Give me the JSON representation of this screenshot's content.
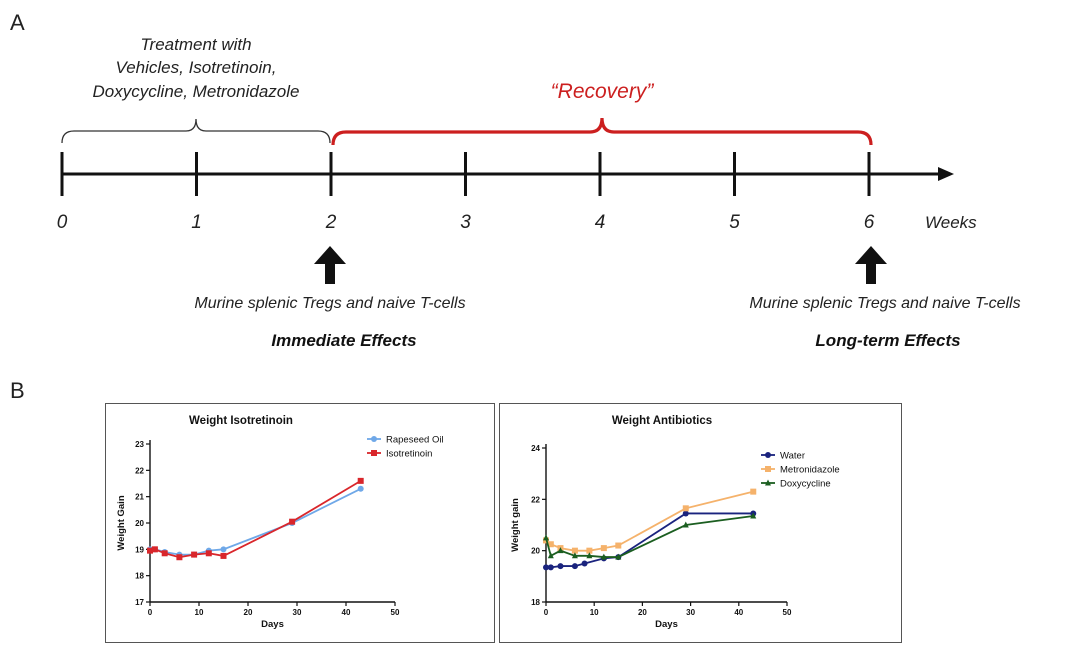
{
  "panel_a": {
    "letter": "A",
    "treatment_lines": [
      "Treatment with",
      "Vehicles, Isotretinoin,",
      "Doxycycline, Metronidazole"
    ],
    "recovery_label": "“Recovery”",
    "weeks": [
      "0",
      "1",
      "2",
      "3",
      "4",
      "5",
      "6"
    ],
    "weeks_unit": "Weeks",
    "left_caption": "Murine splenic Tregs and naive T-cells",
    "left_effect": "Immediate Effects",
    "right_caption": "Murine splenic Tregs and naive T-cells",
    "right_effect": "Long-term Effects",
    "colors": {
      "recovery": "#cc1f1f",
      "timeline": "#111111"
    }
  },
  "panel_b": {
    "letter": "B"
  },
  "chart_data": [
    {
      "type": "line",
      "title": "Weight Isotretinoin",
      "xlabel": "Days",
      "ylabel": "Weight Gain",
      "xlim": [
        0,
        50
      ],
      "ylim": [
        17,
        23
      ],
      "xticks": [
        0,
        10,
        20,
        30,
        40,
        50
      ],
      "yticks": [
        17,
        18,
        19,
        20,
        21,
        22,
        23
      ],
      "grid": false,
      "legend": "top-right",
      "series": [
        {
          "name": "Rapeseed Oil",
          "marker": "circle",
          "color": "#6fa8e8",
          "x": [
            0,
            1,
            3,
            6,
            9,
            12,
            15,
            29,
            43
          ],
          "y": [
            19.0,
            19.0,
            18.9,
            18.8,
            18.8,
            18.95,
            19.0,
            20.0,
            21.3
          ]
        },
        {
          "name": "Isotretinoin",
          "marker": "square",
          "color": "#d9262b",
          "x": [
            0,
            1,
            3,
            6,
            9,
            12,
            15,
            29,
            43
          ],
          "y": [
            18.95,
            19.0,
            18.85,
            18.7,
            18.8,
            18.85,
            18.75,
            20.05,
            21.6
          ]
        }
      ]
    },
    {
      "type": "line",
      "title": "Weight Antibiotics",
      "xlabel": "Days",
      "ylabel": "Weight gain",
      "xlim": [
        0,
        50
      ],
      "ylim": [
        18,
        24
      ],
      "xticks": [
        0,
        10,
        20,
        30,
        40,
        50
      ],
      "yticks": [
        18,
        20,
        22,
        24
      ],
      "grid": false,
      "legend": "top-right",
      "series": [
        {
          "name": "Water",
          "marker": "circle",
          "color": "#1a237e",
          "x": [
            0,
            1,
            3,
            6,
            8,
            12,
            15,
            29,
            43
          ],
          "y": [
            19.35,
            19.35,
            19.4,
            19.4,
            19.5,
            19.7,
            19.75,
            21.45,
            21.45
          ]
        },
        {
          "name": "Metronidazole",
          "marker": "square",
          "color": "#f5b26b",
          "x": [
            0,
            1,
            3,
            6,
            9,
            12,
            15,
            29,
            43
          ],
          "y": [
            20.4,
            20.25,
            20.1,
            20.0,
            20.0,
            20.1,
            20.2,
            21.65,
            22.3
          ]
        },
        {
          "name": "Doxycycline",
          "marker": "triangle",
          "color": "#1b5e20",
          "x": [
            0,
            1,
            3,
            6,
            9,
            12,
            15,
            29,
            43
          ],
          "y": [
            20.5,
            19.8,
            20.0,
            19.8,
            19.8,
            19.75,
            19.75,
            21.0,
            21.35
          ]
        }
      ]
    }
  ]
}
